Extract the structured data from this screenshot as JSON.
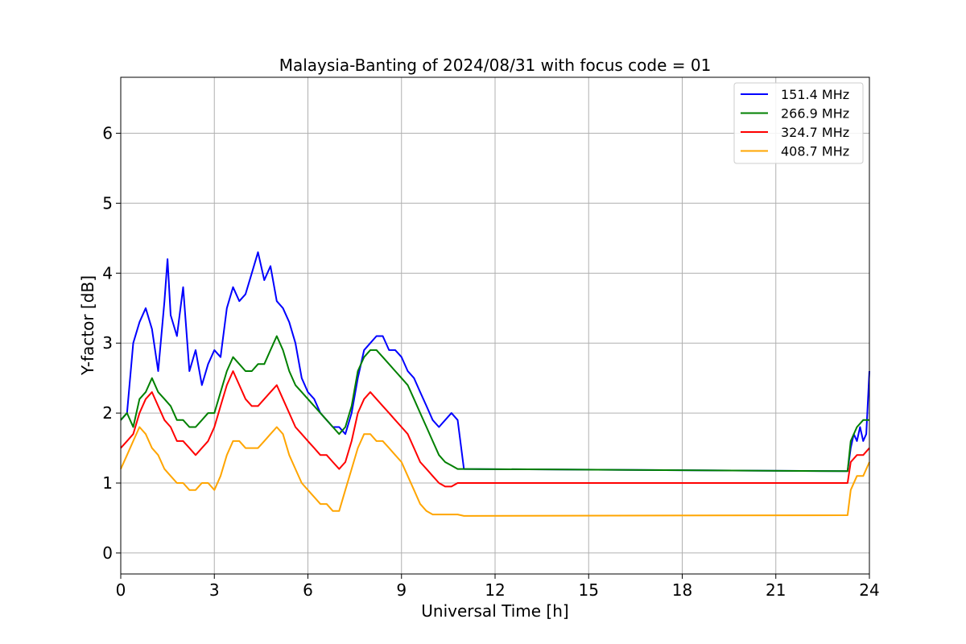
{
  "chart_data": {
    "type": "line",
    "title": "Malaysia-Banting of 2024/08/31 with focus code = 01",
    "xlabel": "Universal Time [h]",
    "ylabel": "Y-factor [dB]",
    "xlim": [
      0,
      24
    ],
    "ylim": [
      -0.3,
      6.8
    ],
    "xticks": [
      0,
      3,
      6,
      9,
      12,
      15,
      18,
      21,
      24
    ],
    "yticks": [
      0,
      1,
      2,
      3,
      4,
      5,
      6
    ],
    "grid": true,
    "legend_position": "top-right",
    "series": [
      {
        "name": "151.4 MHz",
        "color": "#0000ff",
        "x": [
          0,
          0.2,
          0.4,
          0.6,
          0.8,
          1.0,
          1.2,
          1.4,
          1.5,
          1.6,
          1.8,
          2.0,
          2.2,
          2.4,
          2.6,
          2.8,
          3.0,
          3.2,
          3.4,
          3.6,
          3.8,
          4.0,
          4.2,
          4.4,
          4.6,
          4.8,
          5.0,
          5.2,
          5.4,
          5.6,
          5.8,
          6.0,
          6.2,
          6.4,
          6.6,
          6.8,
          7.0,
          7.2,
          7.4,
          7.6,
          7.8,
          8.0,
          8.2,
          8.4,
          8.6,
          8.8,
          9.0,
          9.2,
          9.4,
          9.6,
          9.8,
          10.0,
          10.2,
          10.4,
          10.6,
          10.8,
          11.0,
          23.3,
          23.4,
          23.5,
          23.6,
          23.7,
          23.8,
          23.9,
          24.0
        ],
        "y": [
          1.9,
          2.0,
          3.0,
          3.3,
          3.5,
          3.2,
          2.6,
          3.6,
          4.2,
          3.4,
          3.1,
          3.8,
          2.6,
          2.9,
          2.4,
          2.7,
          2.9,
          2.8,
          3.5,
          3.8,
          3.6,
          3.7,
          4.0,
          4.3,
          3.9,
          4.1,
          3.6,
          3.5,
          3.3,
          3.0,
          2.5,
          2.3,
          2.2,
          2.0,
          1.9,
          1.8,
          1.8,
          1.7,
          2.0,
          2.5,
          2.9,
          3.0,
          3.1,
          3.1,
          2.9,
          2.9,
          2.8,
          2.6,
          2.5,
          2.3,
          2.1,
          1.9,
          1.8,
          1.9,
          2.0,
          1.9,
          1.2,
          1.17,
          1.5,
          1.7,
          1.6,
          1.8,
          1.6,
          1.7,
          2.6
        ]
      },
      {
        "name": "266.9 MHz",
        "color": "#008000",
        "x": [
          0,
          0.2,
          0.4,
          0.6,
          0.8,
          1.0,
          1.2,
          1.4,
          1.6,
          1.8,
          2.0,
          2.2,
          2.4,
          2.6,
          2.8,
          3.0,
          3.2,
          3.4,
          3.6,
          3.8,
          4.0,
          4.2,
          4.4,
          4.6,
          4.8,
          5.0,
          5.2,
          5.4,
          5.6,
          5.8,
          6.0,
          6.2,
          6.4,
          6.6,
          6.8,
          7.0,
          7.2,
          7.4,
          7.6,
          7.8,
          8.0,
          8.2,
          8.4,
          8.6,
          8.8,
          9.0,
          9.2,
          9.4,
          9.6,
          9.8,
          10.0,
          10.2,
          10.4,
          10.6,
          10.8,
          11.0,
          23.3,
          23.4,
          23.6,
          23.8,
          24.0
        ],
        "y": [
          1.9,
          2.0,
          1.8,
          2.2,
          2.3,
          2.5,
          2.3,
          2.2,
          2.1,
          1.9,
          1.9,
          1.8,
          1.8,
          1.9,
          2.0,
          2.0,
          2.3,
          2.6,
          2.8,
          2.7,
          2.6,
          2.6,
          2.7,
          2.7,
          2.9,
          3.1,
          2.9,
          2.6,
          2.4,
          2.3,
          2.2,
          2.1,
          2.0,
          1.9,
          1.8,
          1.7,
          1.8,
          2.1,
          2.6,
          2.8,
          2.9,
          2.9,
          2.8,
          2.7,
          2.6,
          2.5,
          2.4,
          2.2,
          2.0,
          1.8,
          1.6,
          1.4,
          1.3,
          1.25,
          1.2,
          1.2,
          1.17,
          1.6,
          1.8,
          1.9,
          1.9
        ]
      },
      {
        "name": "324.7 MHz",
        "color": "#ff0000",
        "x": [
          0,
          0.2,
          0.4,
          0.6,
          0.8,
          1.0,
          1.2,
          1.4,
          1.6,
          1.8,
          2.0,
          2.2,
          2.4,
          2.6,
          2.8,
          3.0,
          3.2,
          3.4,
          3.6,
          3.8,
          4.0,
          4.2,
          4.4,
          4.6,
          4.8,
          5.0,
          5.2,
          5.4,
          5.6,
          5.8,
          6.0,
          6.2,
          6.4,
          6.6,
          6.8,
          7.0,
          7.2,
          7.4,
          7.6,
          7.8,
          8.0,
          8.2,
          8.4,
          8.6,
          8.8,
          9.0,
          9.2,
          9.4,
          9.6,
          9.8,
          10.0,
          10.2,
          10.4,
          10.6,
          10.8,
          11.0,
          23.3,
          23.4,
          23.6,
          23.8,
          24.0
        ],
        "y": [
          1.5,
          1.6,
          1.7,
          2.0,
          2.2,
          2.3,
          2.1,
          1.9,
          1.8,
          1.6,
          1.6,
          1.5,
          1.4,
          1.5,
          1.6,
          1.8,
          2.1,
          2.4,
          2.6,
          2.4,
          2.2,
          2.1,
          2.1,
          2.2,
          2.3,
          2.4,
          2.2,
          2.0,
          1.8,
          1.7,
          1.6,
          1.5,
          1.4,
          1.4,
          1.3,
          1.2,
          1.3,
          1.6,
          2.0,
          2.2,
          2.3,
          2.2,
          2.1,
          2.0,
          1.9,
          1.8,
          1.7,
          1.5,
          1.3,
          1.2,
          1.1,
          1.0,
          0.95,
          0.95,
          1.0,
          1.0,
          1.0,
          1.3,
          1.4,
          1.4,
          1.5
        ]
      },
      {
        "name": "408.7 MHz",
        "color": "#ffa500",
        "x": [
          0,
          0.2,
          0.4,
          0.6,
          0.8,
          1.0,
          1.2,
          1.4,
          1.6,
          1.8,
          2.0,
          2.2,
          2.4,
          2.6,
          2.8,
          3.0,
          3.2,
          3.4,
          3.6,
          3.8,
          4.0,
          4.2,
          4.4,
          4.6,
          4.8,
          5.0,
          5.2,
          5.4,
          5.6,
          5.8,
          6.0,
          6.2,
          6.4,
          6.6,
          6.8,
          7.0,
          7.2,
          7.4,
          7.6,
          7.8,
          8.0,
          8.2,
          8.4,
          8.6,
          8.8,
          9.0,
          9.2,
          9.4,
          9.6,
          9.8,
          10.0,
          10.2,
          10.4,
          10.6,
          10.8,
          11.0,
          23.3,
          23.4,
          23.6,
          23.8,
          24.0
        ],
        "y": [
          1.2,
          1.4,
          1.6,
          1.8,
          1.7,
          1.5,
          1.4,
          1.2,
          1.1,
          1.0,
          1.0,
          0.9,
          0.9,
          1.0,
          1.0,
          0.9,
          1.1,
          1.4,
          1.6,
          1.6,
          1.5,
          1.5,
          1.5,
          1.6,
          1.7,
          1.8,
          1.7,
          1.4,
          1.2,
          1.0,
          0.9,
          0.8,
          0.7,
          0.7,
          0.6,
          0.6,
          0.9,
          1.2,
          1.5,
          1.7,
          1.7,
          1.6,
          1.6,
          1.5,
          1.4,
          1.3,
          1.1,
          0.9,
          0.7,
          0.6,
          0.55,
          0.55,
          0.55,
          0.55,
          0.55,
          0.53,
          0.54,
          0.9,
          1.1,
          1.1,
          1.3
        ]
      }
    ]
  }
}
